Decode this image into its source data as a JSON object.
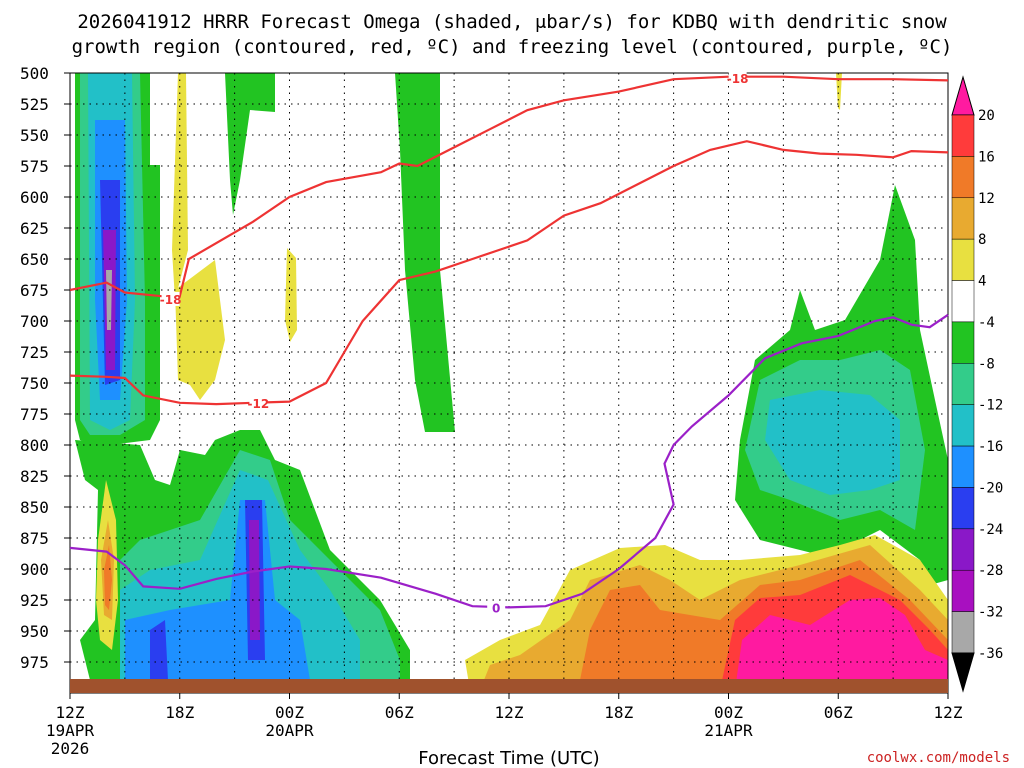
{
  "chart_data": {
    "type": "time-height cross section",
    "title_line1": "2026041912 HRRR Forecast Omega (shaded, μbar/s) for KDBQ with dendritic snow",
    "title_line2": "growth region (contoured, red, ºC) and freezing level (contoured, purple, ºC)",
    "xlabel": "Forecast Time (UTC)",
    "credit": "coolwx.com/models",
    "x_ticks": [
      {
        "hour": 0,
        "label": "12Z",
        "sub1": "19APR",
        "sub2": "2026"
      },
      {
        "hour": 6,
        "label": "18Z",
        "sub1": "",
        "sub2": ""
      },
      {
        "hour": 12,
        "label": "00Z",
        "sub1": "20APR",
        "sub2": ""
      },
      {
        "hour": 18,
        "label": "06Z",
        "sub1": "",
        "sub2": ""
      },
      {
        "hour": 24,
        "label": "12Z",
        "sub1": "",
        "sub2": ""
      },
      {
        "hour": 30,
        "label": "18Z",
        "sub1": "",
        "sub2": ""
      },
      {
        "hour": 36,
        "label": "00Z",
        "sub1": "21APR",
        "sub2": ""
      },
      {
        "hour": 42,
        "label": "06Z",
        "sub1": "",
        "sub2": ""
      },
      {
        "hour": 48,
        "label": "12Z",
        "sub1": "",
        "sub2": ""
      }
    ],
    "y_ticks": [
      500,
      525,
      550,
      575,
      600,
      625,
      650,
      675,
      700,
      725,
      750,
      775,
      800,
      825,
      850,
      875,
      900,
      925,
      950,
      975
    ],
    "xlim_hours": [
      0,
      48
    ],
    "ylim_hpa": [
      500,
      1000
    ],
    "colorbar": {
      "labels": [
        "20",
        "16",
        "12",
        "8",
        "4",
        "-4",
        "-8",
        "-12",
        "-16",
        "-20",
        "-24",
        "-28",
        "-32",
        "-36"
      ],
      "levels": [
        20,
        16,
        12,
        8,
        4,
        -4,
        -8,
        -12,
        -16,
        -20,
        -24,
        -28,
        -32,
        -36
      ],
      "colors": [
        "#ff1aa0",
        "#ff3b3b",
        "#f07a28",
        "#e8aa30",
        "#e8e040",
        "#ffffff",
        "#22c422",
        "#33cc8a",
        "#22c0c8",
        "#1e90ff",
        "#2a3ef0",
        "#8a18c8",
        "#a810c0",
        "#a8a8a8",
        "#000000"
      ]
    },
    "dgz_contours": [
      {
        "label": "-18",
        "color": "#ee3333",
        "points": [
          [
            0,
            675
          ],
          [
            2,
            669
          ],
          [
            3,
            677
          ],
          [
            5,
            680
          ],
          [
            6,
            680
          ],
          [
            6.5,
            650
          ],
          [
            10,
            620
          ],
          [
            12,
            600
          ],
          [
            14,
            588
          ],
          [
            17,
            580
          ],
          [
            18,
            573
          ],
          [
            19,
            575
          ],
          [
            21,
            560
          ],
          [
            23,
            545
          ],
          [
            25,
            530
          ],
          [
            27,
            522
          ],
          [
            30,
            515
          ],
          [
            33,
            505
          ],
          [
            36,
            503
          ],
          [
            39,
            503
          ],
          [
            42,
            505
          ],
          [
            45,
            505
          ],
          [
            48,
            506
          ]
        ]
      },
      {
        "label": "-12",
        "color": "#ee3333",
        "points": [
          [
            0,
            744
          ],
          [
            2,
            745
          ],
          [
            3,
            746
          ],
          [
            4,
            760
          ],
          [
            6,
            766
          ],
          [
            8,
            767
          ],
          [
            10,
            766
          ],
          [
            12,
            765
          ],
          [
            14,
            750
          ],
          [
            15,
            725
          ],
          [
            16,
            700
          ],
          [
            18,
            667
          ],
          [
            20,
            660
          ],
          [
            22,
            650
          ],
          [
            25,
            635
          ],
          [
            27,
            615
          ],
          [
            29,
            605
          ],
          [
            31,
            590
          ],
          [
            33,
            575
          ],
          [
            35,
            562
          ],
          [
            37,
            555
          ],
          [
            39,
            562
          ],
          [
            41,
            565
          ],
          [
            43,
            566
          ],
          [
            45,
            568
          ],
          [
            46,
            563
          ],
          [
            48,
            564
          ]
        ]
      }
    ],
    "freezing_level": {
      "label": "0",
      "color": "#9b20c8",
      "points": [
        [
          0,
          883
        ],
        [
          2,
          886
        ],
        [
          3,
          897
        ],
        [
          4,
          914
        ],
        [
          6,
          916
        ],
        [
          8,
          908
        ],
        [
          10,
          902
        ],
        [
          12,
          898
        ],
        [
          14,
          900
        ],
        [
          17,
          907
        ],
        [
          20,
          920
        ],
        [
          22,
          930
        ],
        [
          24,
          931
        ],
        [
          26,
          930
        ],
        [
          28,
          920
        ],
        [
          30,
          900
        ],
        [
          32,
          875
        ],
        [
          33,
          848
        ],
        [
          32.5,
          815
        ],
        [
          33,
          800
        ],
        [
          34,
          785
        ],
        [
          36,
          760
        ],
        [
          38,
          730
        ],
        [
          40,
          718
        ],
        [
          42,
          712
        ],
        [
          44,
          700
        ],
        [
          45,
          697
        ],
        [
          46,
          703
        ],
        [
          47,
          705
        ],
        [
          48,
          695
        ]
      ]
    }
  }
}
